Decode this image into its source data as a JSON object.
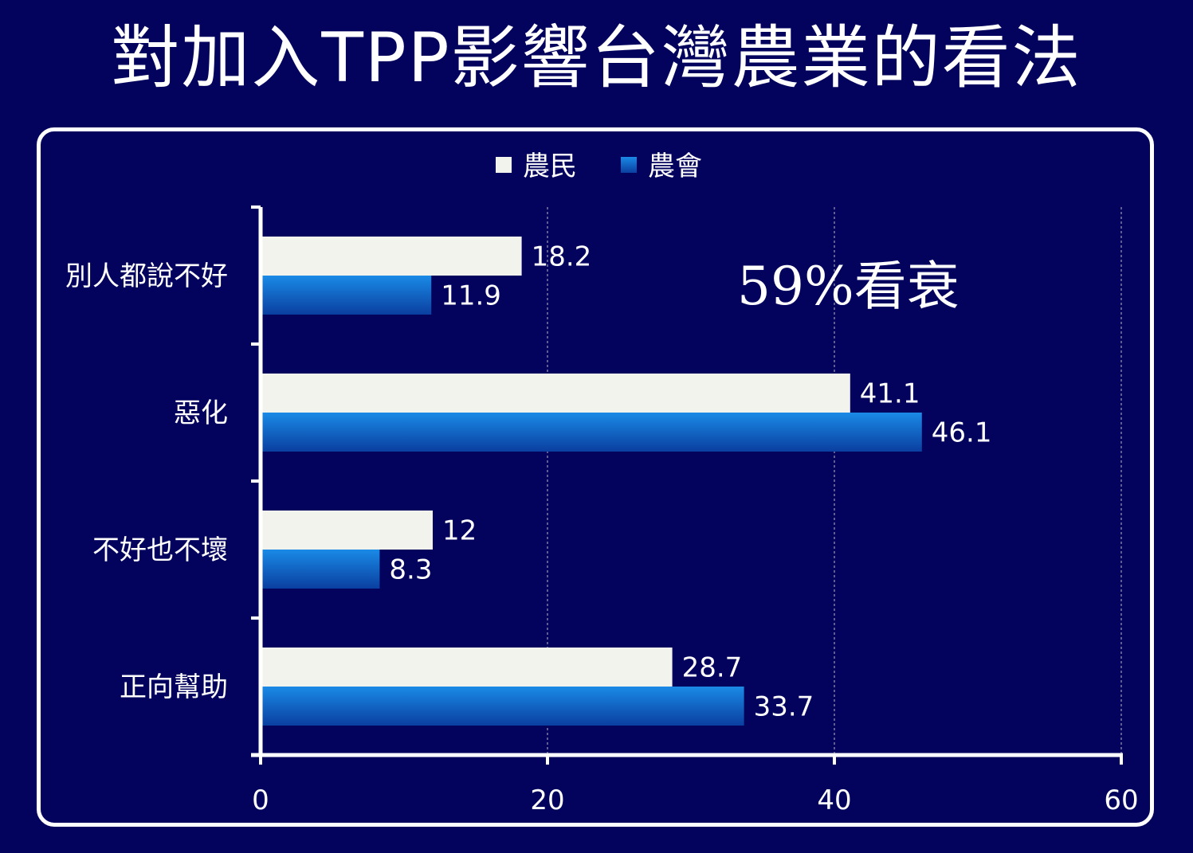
{
  "title": "對加入TPP影響台灣農業的看法",
  "annotation": "59%看衰",
  "colors": {
    "background": "#03035e",
    "farmer": "#f3f3ee",
    "association_top": "#1a8ae6",
    "association_bottom": "#0a3fa0",
    "grid": "#9a9ab8"
  },
  "chart_data": {
    "type": "bar",
    "orientation": "horizontal",
    "categories": [
      "別人都說不好",
      "惡化",
      "不好也不壞",
      "正向幫助"
    ],
    "series": [
      {
        "name": "農民",
        "values": [
          18.2,
          41.1,
          12,
          28.7
        ]
      },
      {
        "name": "農會",
        "values": [
          11.9,
          46.1,
          8.3,
          33.7
        ]
      }
    ],
    "xlim": [
      0,
      60
    ],
    "xticks": [
      "0",
      "20",
      "40",
      "60"
    ],
    "grid": "vertical dashed",
    "legend": "top-center"
  }
}
